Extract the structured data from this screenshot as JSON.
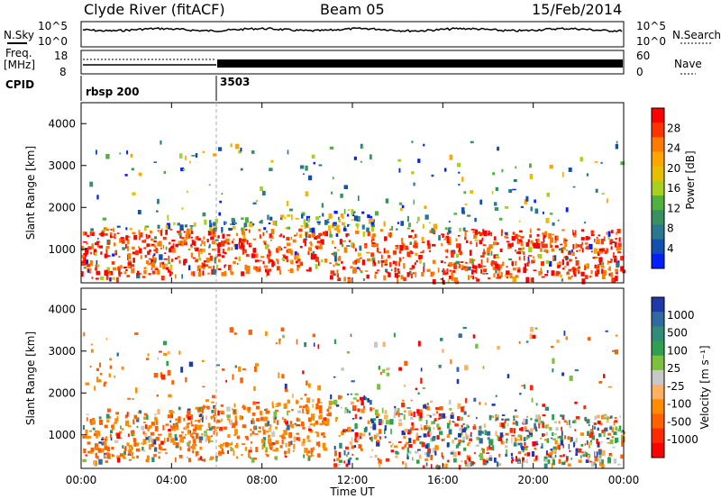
{
  "header": {
    "station": "Clyde River (fitACF)",
    "beam": "Beam 05",
    "date": "15/Feb/2014"
  },
  "top_panels": {
    "nsky_label": "N.Sky",
    "nsky_ticks": [
      "10^5",
      "10^0"
    ],
    "nsearch_label": "N.Search",
    "nsearch_ticks": [
      "10^5",
      "10^0"
    ],
    "freq_label": "Freq.",
    "freq_unit": "[MHz]",
    "freq_ticks": [
      "18",
      "8"
    ],
    "nave_label": "Nave",
    "nave_ticks": [
      "60",
      "0"
    ],
    "cpid_label": "CPID",
    "cpid_segments": [
      {
        "label": "rbsp 200",
        "start_hour": 0
      },
      {
        "label": "3503",
        "start_hour": 6
      }
    ]
  },
  "chart_data": [
    {
      "type": "heatmap",
      "panel": "power",
      "ylabel": "Slant Range [km]",
      "y_ticks": [
        "1000",
        "2000",
        "3000",
        "4000"
      ],
      "ylim": [
        200,
        4500
      ],
      "xlabel": "Time UT",
      "x_ticks": [
        "00:00",
        "04:00",
        "08:00",
        "12:00",
        "16:00",
        "20:00",
        "00:00"
      ],
      "xlim_hours": [
        0,
        24
      ],
      "colorbar": {
        "label": "Power [dB]",
        "ticks": [
          "28",
          "24",
          "20",
          "16",
          "12",
          "8",
          "4"
        ],
        "colors": [
          "#ff0000",
          "#ff3300",
          "#ff7a00",
          "#ffa500",
          "#e6c000",
          "#a8d020",
          "#50b040",
          "#3a9060",
          "#2a7890",
          "#1050b0",
          "#0020ff"
        ]
      }
    },
    {
      "type": "heatmap",
      "panel": "velocity",
      "ylabel": "Slant Range [km]",
      "y_ticks": [
        "1000",
        "2000",
        "3000",
        "4000"
      ],
      "ylim": [
        200,
        4500
      ],
      "xlabel": "Time UT",
      "x_ticks": [
        "00:00",
        "04:00",
        "08:00",
        "12:00",
        "16:00",
        "20:00",
        "00:00"
      ],
      "xlim_hours": [
        0,
        24
      ],
      "colorbar": {
        "label": "Velocity [m s⁻¹]",
        "ticks": [
          "1000",
          "500",
          "100",
          "25",
          "-25",
          "-100",
          "-500",
          "-1000"
        ],
        "colors": [
          "#1f3aa8",
          "#2f6aa0",
          "#2f8c78",
          "#30a050",
          "#7cc040",
          "#c8c8c8",
          "#ffb060",
          "#ff8c00",
          "#ff6000",
          "#ff2a00",
          "#ff0000"
        ]
      }
    }
  ]
}
